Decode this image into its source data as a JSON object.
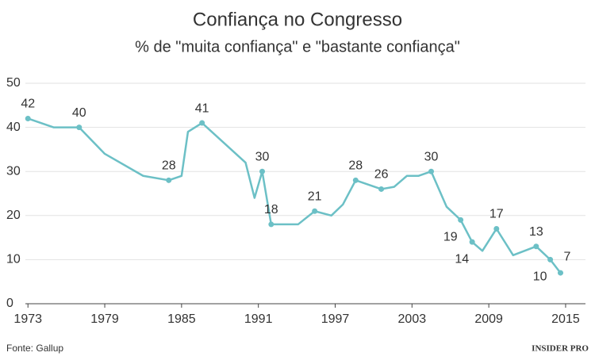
{
  "chart_data": {
    "type": "line",
    "title": "Confiança no Congresso",
    "subtitle": "% de \"muita confiança\" e \"bastante confiança\"",
    "source": "Fonte: Gallup",
    "logo": "INSIDER PRO",
    "x": [
      1973,
      1975,
      1977,
      1979,
      1982,
      1984,
      1985,
      1985.5,
      1986.6,
      1990,
      1990.7,
      1991.3,
      1992,
      1994.1,
      1995.4,
      1996.7,
      1997.6,
      1998.6,
      2000.6,
      2001.6,
      2002.6,
      2003.5,
      2004.5,
      2005.7,
      2006.8,
      2007.7,
      2008.5,
      2009.6,
      2010.9,
      2012.7,
      2013.8,
      2014.6
    ],
    "series": [
      {
        "name": "Confiança no Congresso",
        "color": "#6cc0c6",
        "values": [
          42,
          40,
          40,
          34,
          29,
          28,
          29,
          39,
          41,
          32,
          24,
          30,
          18,
          18,
          21,
          20,
          22.5,
          28,
          26,
          26.5,
          29,
          29,
          30,
          22,
          19,
          14,
          12,
          17,
          11,
          13,
          10,
          7
        ],
        "value_labels": [
          "42",
          null,
          "40",
          null,
          null,
          "28",
          null,
          null,
          "41",
          null,
          null,
          "30",
          "18",
          null,
          "21",
          null,
          null,
          "28",
          "26",
          null,
          null,
          null,
          "30",
          null,
          "19",
          "14",
          null,
          "17",
          null,
          "13",
          "10",
          "7"
        ]
      }
    ],
    "xlim": [
      1972.8,
      2016.8
    ],
    "xticks": [
      1973,
      1979,
      1985,
      1991,
      1997,
      2003,
      2009,
      2015
    ],
    "ylim": [
      0,
      50
    ],
    "yticks": [
      0,
      10,
      20,
      30,
      40,
      50
    ],
    "grid": true
  }
}
